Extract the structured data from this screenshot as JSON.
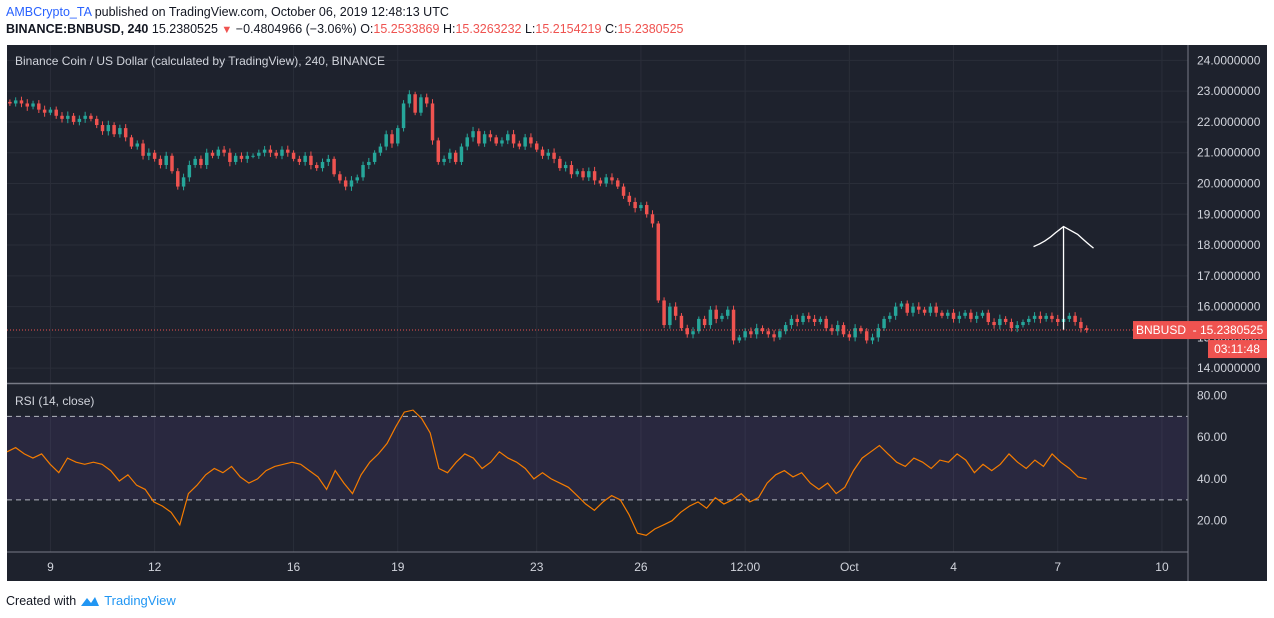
{
  "header": {
    "user": "AMBCrypto_TA",
    "published": "published on TradingView.com, October 06, 2019 12:48:13 UTC",
    "symbol": "BINANCE:BNBUSD, 240",
    "last": "15.2380525",
    "change": "−0.4804966 (−3.06%)",
    "o_label": "O:",
    "o": "15.2533869",
    "h_label": "H:",
    "h": "15.3263232",
    "l_label": "L:",
    "l": "15.2154219",
    "c_label": "C:",
    "c": "15.2380525"
  },
  "footer": {
    "created": "Created with",
    "brand": "TradingView"
  },
  "colors": {
    "bg": "#1e222d",
    "up": "#26a69a",
    "down": "#ef5350",
    "rsi": "#f57c00",
    "rsiBand": "#7e57c2",
    "axisText": "#d1d4dc"
  },
  "chart_data": [
    {
      "type": "candlestick",
      "title": "Binance Coin / US Dollar (calculated by TradingView), 240, BINANCE",
      "price_label": "BNBUSD",
      "last_price": 15.2380525,
      "last_price_label": "15.2380525",
      "countdown": "03:11:48",
      "ylim": [
        13.55,
        24.5
      ],
      "yticks": [
        14,
        15,
        16,
        17,
        18,
        19,
        20,
        21,
        22,
        23,
        24
      ],
      "ytick_labels": [
        "14.0000000",
        "15.0000000",
        "16.0000000",
        "17.0000000",
        "18.0000000",
        "19.0000000",
        "20.0000000",
        "21.0000000",
        "22.0000000",
        "23.0000000",
        "24.0000000"
      ],
      "xticks": [
        "9",
        "12",
        "16",
        "19",
        "23",
        "26",
        "12:00",
        "Oct",
        "4",
        "7",
        "10"
      ],
      "xtick_pos": [
        1.5,
        4.5,
        8.5,
        11.5,
        15.5,
        18.5,
        21.5,
        24.5,
        27.5,
        30.5,
        33.5
      ],
      "xlim": [
        0.25,
        34.25
      ],
      "closes": [
        22.6,
        22.7,
        22.6,
        22.5,
        22.6,
        22.4,
        22.3,
        22.4,
        22.2,
        22.1,
        22.2,
        22.0,
        22.1,
        22.2,
        22.1,
        21.9,
        21.7,
        21.9,
        21.6,
        21.8,
        21.5,
        21.2,
        21.3,
        20.9,
        21.0,
        20.8,
        20.6,
        20.9,
        20.4,
        19.9,
        20.2,
        20.6,
        20.8,
        20.6,
        21.0,
        20.9,
        21.1,
        21.0,
        20.7,
        20.9,
        20.8,
        20.9,
        20.9,
        21.0,
        21.1,
        21.0,
        20.9,
        21.1,
        21.0,
        20.8,
        20.7,
        20.9,
        20.6,
        20.5,
        20.7,
        20.8,
        20.3,
        20.1,
        19.9,
        20.1,
        20.2,
        20.6,
        20.7,
        21.0,
        21.2,
        21.6,
        21.3,
        21.8,
        22.6,
        22.9,
        22.3,
        22.8,
        22.6,
        21.4,
        20.7,
        20.8,
        21.0,
        20.7,
        21.2,
        21.5,
        21.7,
        21.3,
        21.6,
        21.5,
        21.3,
        21.4,
        21.6,
        21.3,
        21.2,
        21.5,
        21.3,
        21.1,
        20.9,
        21.0,
        20.8,
        20.5,
        20.6,
        20.3,
        20.4,
        20.2,
        20.4,
        20.1,
        20.0,
        20.2,
        20.1,
        19.9,
        19.6,
        19.4,
        19.2,
        19.3,
        19.0,
        18.7,
        16.2,
        15.4,
        16.0,
        15.7,
        15.3,
        15.1,
        15.2,
        15.6,
        15.4,
        15.9,
        15.6,
        15.7,
        15.9,
        14.9,
        15.0,
        15.2,
        15.1,
        15.3,
        15.2,
        15.1,
        15.0,
        15.2,
        15.4,
        15.6,
        15.5,
        15.7,
        15.6,
        15.5,
        15.6,
        15.3,
        15.2,
        15.4,
        15.1,
        15.0,
        15.3,
        15.2,
        14.9,
        15.0,
        15.3,
        15.6,
        15.7,
        16.0,
        16.1,
        15.8,
        16.0,
        15.9,
        15.8,
        16.0,
        15.8,
        15.7,
        15.8,
        15.6,
        15.7,
        15.8,
        15.6,
        15.7,
        15.8,
        15.5,
        15.4,
        15.6,
        15.5,
        15.3,
        15.4,
        15.5,
        15.6,
        15.7,
        15.6,
        15.7,
        15.6,
        15.5,
        15.6,
        15.7,
        15.5,
        15.3,
        15.24
      ],
      "series": [
        {
          "name": "RSI (14, close)",
          "ylim": [
            5,
            85
          ],
          "yticks": [
            20,
            40,
            60,
            80
          ],
          "ytick_labels": [
            "20.00",
            "40.00",
            "60.00",
            "80.00"
          ],
          "bands": [
            30,
            70
          ],
          "values": [
            53,
            55,
            52,
            50,
            52,
            47,
            43,
            50,
            48,
            47,
            48,
            47,
            44,
            39,
            42,
            37,
            35,
            29,
            27,
            24,
            18,
            33,
            37,
            42,
            45,
            43,
            46,
            41,
            38,
            40,
            44,
            46,
            47,
            48,
            47,
            44,
            41,
            35,
            44,
            38,
            33,
            42,
            48,
            52,
            57,
            65,
            72,
            73,
            69,
            62,
            45,
            43,
            48,
            52,
            50,
            45,
            48,
            53,
            50,
            48,
            45,
            40,
            43,
            40,
            38,
            36,
            32,
            28,
            25,
            29,
            32,
            30,
            23,
            14,
            13,
            16,
            18,
            20,
            24,
            27,
            29,
            26,
            31,
            28,
            30,
            33,
            29,
            31,
            38,
            42,
            44,
            41,
            43,
            38,
            35,
            38,
            33,
            36,
            44,
            50,
            53,
            56,
            52,
            48,
            46,
            50,
            48,
            45,
            49,
            48,
            52,
            49,
            43,
            47,
            44,
            47,
            52,
            48,
            45,
            49,
            46,
            52,
            48,
            45,
            41,
            40
          ]
        }
      ]
    }
  ]
}
